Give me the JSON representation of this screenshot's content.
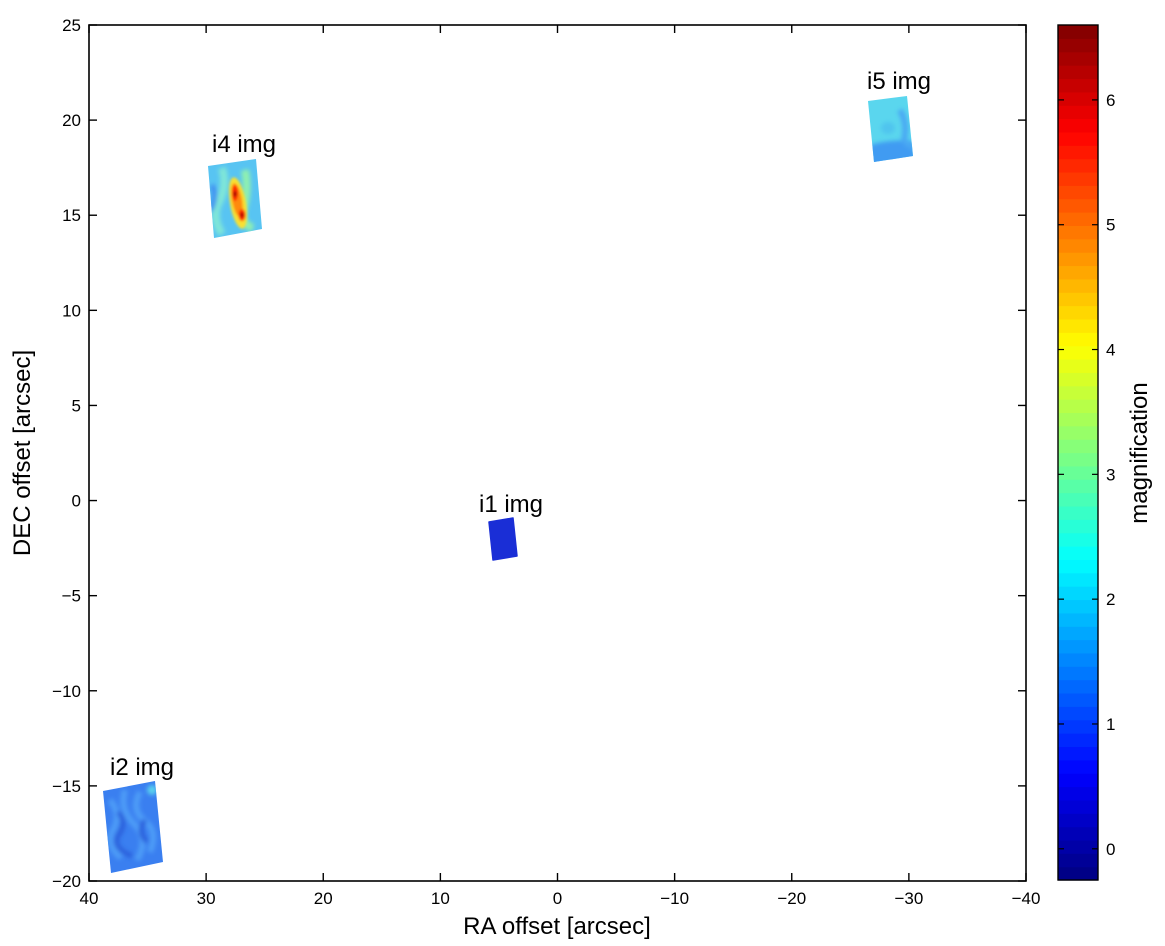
{
  "chart_data": {
    "type": "heatmap",
    "xlabel": "RA offset [arcsec]",
    "ylabel": "DEC offset [arcsec]",
    "xlim": [
      40,
      -40
    ],
    "ylim": [
      -20,
      25
    ],
    "x_reversed": true,
    "xticks": [
      40,
      30,
      20,
      10,
      0,
      -10,
      -20,
      -30,
      -40
    ],
    "xtick_labels": [
      "40",
      "30",
      "20",
      "10",
      "0",
      "−10",
      "−20",
      "−30",
      "−40"
    ],
    "yticks": [
      25,
      20,
      15,
      10,
      5,
      0,
      -5,
      -10,
      -15,
      -20
    ],
    "ytick_labels": [
      "25",
      "20",
      "15",
      "10",
      "5",
      "0",
      "−5",
      "−10",
      "−15",
      "−20"
    ],
    "grid": false,
    "colorbar": {
      "label": "magnification",
      "range": [
        -0.25,
        6.6
      ],
      "ticks": [
        0,
        1,
        2,
        3,
        4,
        5,
        6
      ],
      "tick_labels": [
        "0",
        "1",
        "2",
        "3",
        "4",
        "5",
        "6"
      ],
      "colormap": "jet"
    },
    "regions": [
      {
        "name": "i1 img",
        "center": [
          4.9,
          -2.1
        ],
        "magnification": 0.1,
        "colors": [
          "#1a2ed6"
        ]
      },
      {
        "name": "i2 img",
        "center": [
          36.0,
          -17.2
        ],
        "magnification": 1.2,
        "colors": [
          "#3b7ef0",
          "#4a93f5",
          "#2f68e0"
        ]
      },
      {
        "name": "i4 img",
        "center": [
          27.4,
          15.8
        ],
        "magnification": 2.0,
        "colors": [
          "#4fb8f4",
          "#8fe8c8",
          "#ffd21a",
          "#ff3b10",
          "#a30000"
        ]
      },
      {
        "name": "i5 img",
        "center": [
          -28.6,
          19.6
        ],
        "magnification": 1.8,
        "colors": [
          "#5ad6ee",
          "#3f9bf2"
        ]
      }
    ]
  }
}
